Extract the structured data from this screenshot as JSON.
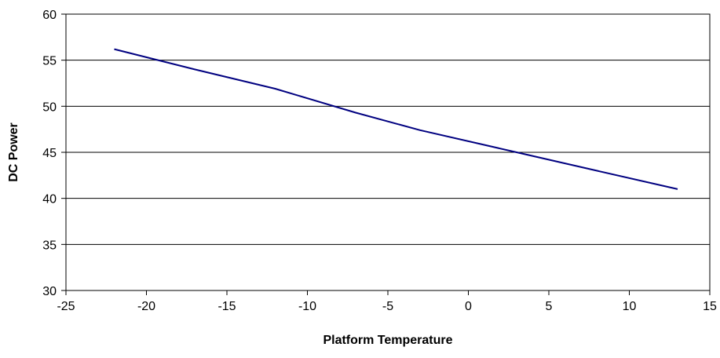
{
  "chart_data": {
    "type": "line",
    "title": "",
    "xlabel": "Platform Temperature",
    "ylabel": "DC Power",
    "xlim": [
      -25,
      15
    ],
    "ylim": [
      30,
      60
    ],
    "x_ticks": [
      -25,
      -20,
      -15,
      -10,
      -5,
      0,
      5,
      10,
      15
    ],
    "y_ticks": [
      30,
      35,
      40,
      45,
      50,
      55,
      60
    ],
    "x_tick_labels": [
      "-25",
      "-20",
      "-15",
      "-10",
      "-5",
      "0",
      "5",
      "10",
      "15"
    ],
    "y_tick_labels": [
      "30",
      "35",
      "40",
      "45",
      "50",
      "55",
      "60"
    ],
    "grid": "horizontal",
    "legend": "none",
    "series": [
      {
        "color": "#000080",
        "x": [
          -22,
          -17,
          -12,
          -7,
          -3,
          3,
          8,
          13
        ],
        "y": [
          56.2,
          54.0,
          51.9,
          49.3,
          47.4,
          45.0,
          43.0,
          41.0
        ]
      }
    ]
  }
}
